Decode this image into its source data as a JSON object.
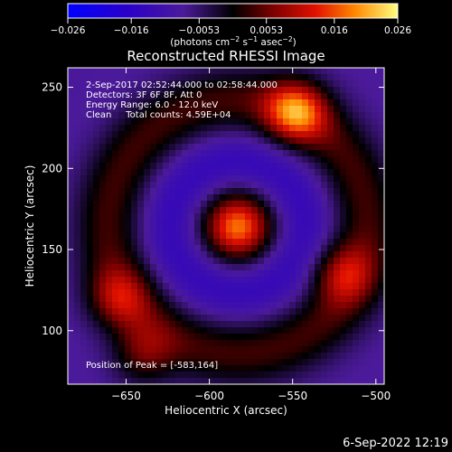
{
  "colorbar": {
    "ticks": [
      "−0.026",
      "−0.016",
      "−0.0053",
      "0.0053",
      "0.016",
      "0.026"
    ],
    "units_text": "(photons cm",
    "units_sup1": "−2",
    "units_mid": " s",
    "units_sup2": "−1",
    "units_mid2": " asec",
    "units_sup3": "−2",
    "units_end": ")"
  },
  "chart_data": {
    "type": "heatmap",
    "title": "Reconstructed RHESSI Image",
    "xlabel": "Heliocentric X (arcsec)",
    "ylabel": "Heliocentric Y (arcsec)",
    "xlim": [
      -685,
      -495
    ],
    "ylim": [
      67,
      262
    ],
    "x_ticks": [
      -650,
      -600,
      -550,
      -500
    ],
    "y_ticks": [
      100,
      150,
      200,
      250
    ],
    "x_tick_labels": [
      "−650",
      "−600",
      "−550",
      "−500"
    ],
    "y_tick_labels": [
      "100",
      "150",
      "200",
      "250"
    ],
    "colorbar_range": [
      -0.026,
      0.026
    ],
    "sources": [
      {
        "x": -583,
        "y": 164,
        "amplitude": 0.026,
        "label": "peak"
      },
      {
        "x": -548,
        "y": 235,
        "amplitude": 0.02
      },
      {
        "x": -520,
        "y": 135,
        "amplitude": 0.012
      },
      {
        "x": -655,
        "y": 120,
        "amplitude": 0.011
      },
      {
        "x": -640,
        "y": 85,
        "amplitude": 0.01
      }
    ],
    "annotations": [
      "2-Sep-2017 02:52:44.000 to 02:58:44.000",
      "Detectors: 3F 6F 8F, Att 0",
      "Energy Range: 6.0 - 12.0 keV",
      "Clean     Total counts: 4.59E+04",
      "Position of Peak = [-583,164]"
    ]
  },
  "footer_date": "6-Sep-2022 12:19"
}
